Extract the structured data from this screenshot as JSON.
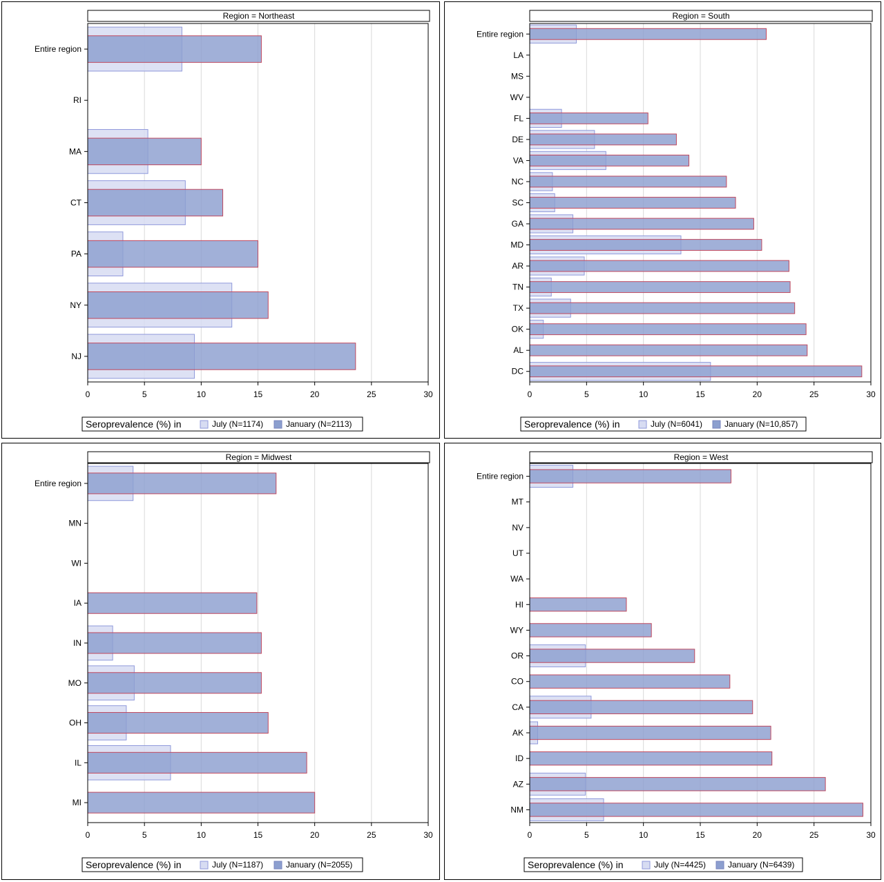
{
  "colors": {
    "july_fill": "#d7dcf2",
    "july_stroke": "#8f99db",
    "january_fill": "#8c9fcf",
    "january_stroke": "#c0485e",
    "gridline": "#d9d9d9",
    "axis": "#000000"
  },
  "chart_data": [
    {
      "type": "bar",
      "title": "Region = Northeast",
      "orientation": "horizontal",
      "categories": [
        "Entire region",
        "RI",
        "MA",
        "CT",
        "PA",
        "NY",
        "NJ"
      ],
      "series": [
        {
          "name": "July (N=1174)",
          "values": [
            8.3,
            null,
            5.3,
            8.6,
            3.1,
            12.7,
            9.4
          ]
        },
        {
          "name": "January (N=2113)",
          "values": [
            15.3,
            null,
            10.0,
            11.9,
            15.0,
            15.9,
            23.6
          ]
        }
      ],
      "xlim": [
        0,
        30
      ],
      "xticks": [
        "0",
        "5",
        "10",
        "15",
        "20",
        "25",
        "30"
      ],
      "grid": true,
      "legend": {
        "title": "Seroprevalence (%) in",
        "position": "bottom"
      }
    },
    {
      "type": "bar",
      "title": "Region = South",
      "orientation": "horizontal",
      "categories": [
        "Entire region",
        "LA",
        "MS",
        "WV",
        "FL",
        "DE",
        "VA",
        "NC",
        "SC",
        "GA",
        "MD",
        "AR",
        "TN",
        "TX",
        "OK",
        "AL",
        "DC"
      ],
      "series": [
        {
          "name": "July (N=6041)",
          "values": [
            4.1,
            null,
            null,
            null,
            2.8,
            5.7,
            6.7,
            2.0,
            2.2,
            3.8,
            13.3,
            4.8,
            1.9,
            3.6,
            1.2,
            null,
            15.9
          ]
        },
        {
          "name": "January (N=10,857)",
          "values": [
            20.8,
            null,
            null,
            null,
            10.4,
            12.9,
            14.0,
            17.3,
            18.1,
            19.7,
            20.4,
            22.8,
            22.9,
            23.3,
            24.3,
            24.4,
            29.2
          ]
        }
      ],
      "xlim": [
        0,
        30
      ],
      "xticks": [
        "0",
        "5",
        "10",
        "15",
        "20",
        "25",
        "30"
      ],
      "grid": true,
      "legend": {
        "title": "Seroprevalence (%) in",
        "position": "bottom"
      }
    },
    {
      "type": "bar",
      "title": "Region = Midwest",
      "orientation": "horizontal",
      "categories": [
        "Entire region",
        "MN",
        "WI",
        "IA",
        "IN",
        "MO",
        "OH",
        "IL",
        "MI"
      ],
      "series": [
        {
          "name": "July (N=1187)",
          "values": [
            4.0,
            null,
            null,
            null,
            2.2,
            4.1,
            3.4,
            7.3,
            null
          ]
        },
        {
          "name": "January (N=2055)",
          "values": [
            16.6,
            null,
            null,
            14.9,
            15.3,
            15.3,
            15.9,
            19.3,
            20.0
          ]
        }
      ],
      "xlim": [
        0,
        30
      ],
      "xticks": [
        "0",
        "5",
        "10",
        "15",
        "20",
        "25",
        "30"
      ],
      "grid": true,
      "legend": {
        "title": "Seroprevalence (%) in",
        "position": "bottom"
      }
    },
    {
      "type": "bar",
      "title": "Region = West",
      "orientation": "horizontal",
      "categories": [
        "Entire region",
        "MT",
        "NV",
        "UT",
        "WA",
        "HI",
        "WY",
        "OR",
        "CO",
        "CA",
        "AK",
        "ID",
        "AZ",
        "NM"
      ],
      "series": [
        {
          "name": "July (N=4425)",
          "values": [
            3.8,
            null,
            null,
            null,
            null,
            null,
            null,
            4.9,
            null,
            5.4,
            0.7,
            null,
            4.9,
            6.5
          ]
        },
        {
          "name": "January (N=6439)",
          "values": [
            17.7,
            null,
            null,
            null,
            null,
            8.5,
            10.7,
            14.5,
            17.6,
            19.6,
            21.2,
            21.3,
            26.0,
            29.3
          ]
        }
      ],
      "xlim": [
        0,
        30
      ],
      "xticks": [
        "0",
        "5",
        "10",
        "15",
        "20",
        "25",
        "30"
      ],
      "grid": true,
      "legend": {
        "title": "Seroprevalence (%) in",
        "position": "bottom"
      }
    }
  ]
}
